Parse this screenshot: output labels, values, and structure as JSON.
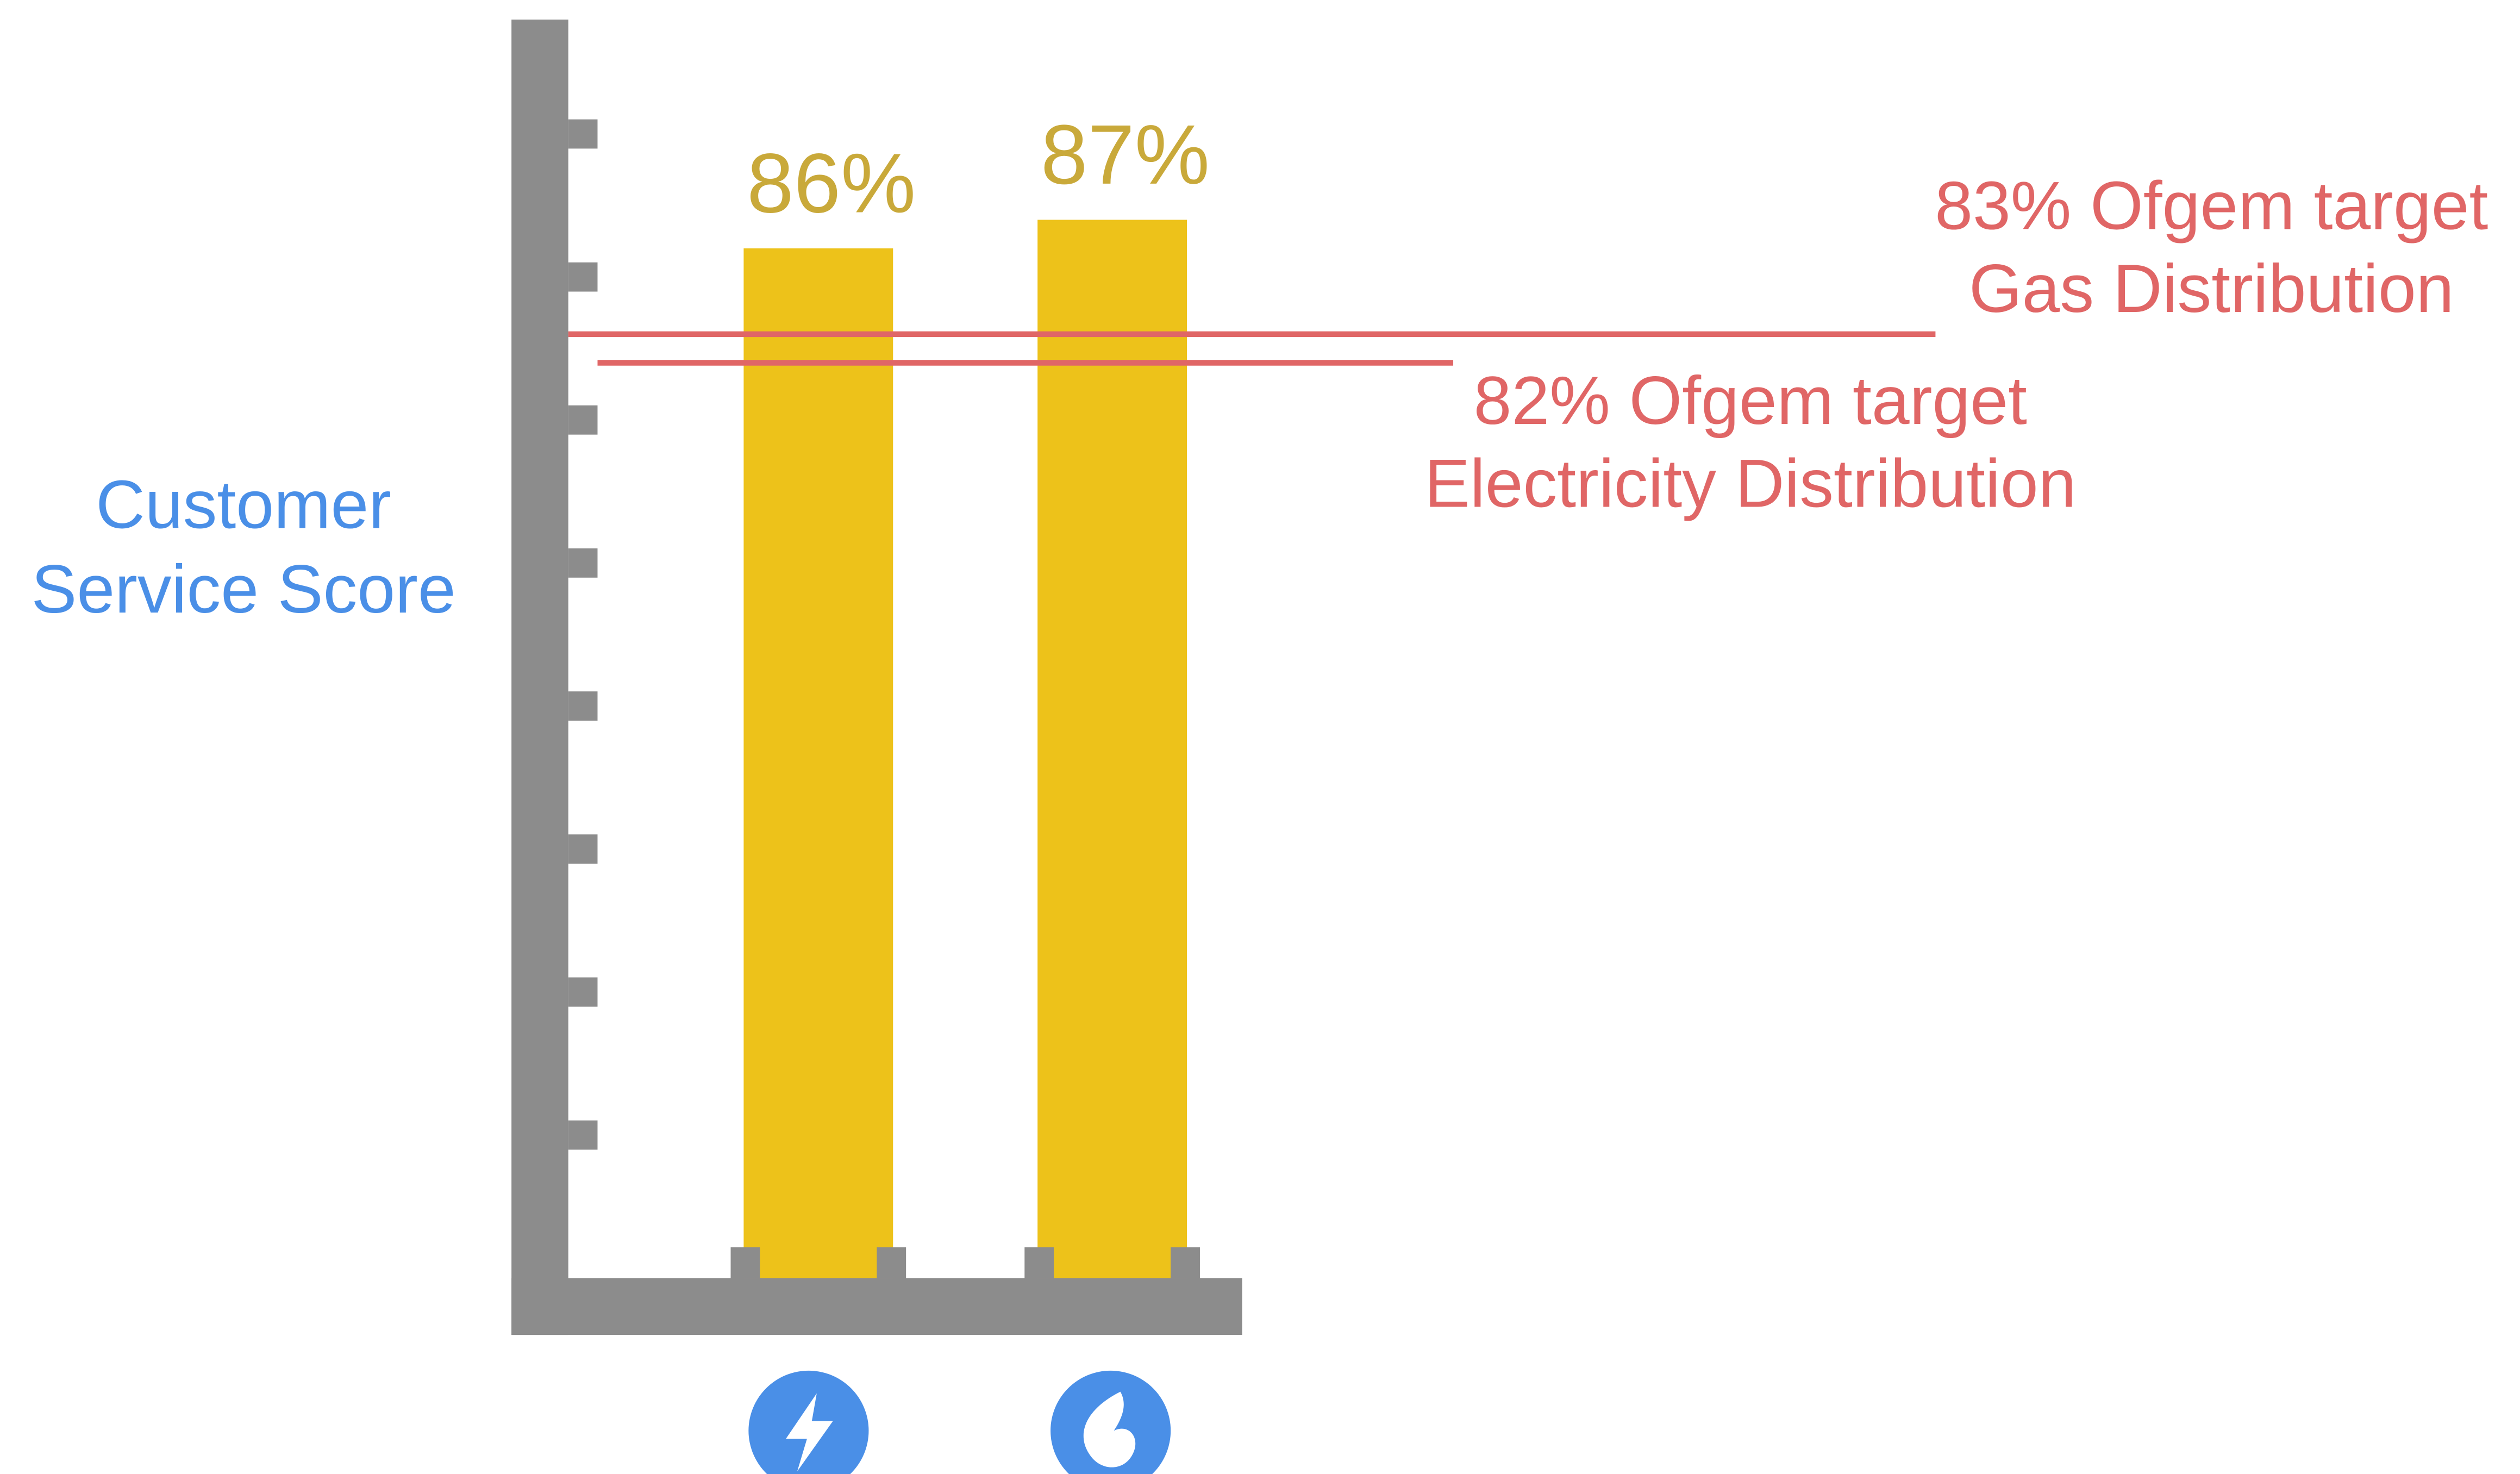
{
  "chart_data": {
    "type": "bar",
    "y_label": [
      "Customer",
      "Service Score"
    ],
    "categories": [
      null,
      null
    ],
    "values": [
      86,
      87
    ],
    "value_labels": [
      "86%",
      "87%"
    ],
    "color": "#edc21a",
    "ylim": [
      50,
      94
    ],
    "yticks": [
      55,
      60,
      65,
      70,
      75,
      80,
      85,
      90
    ],
    "reference_lines": [
      {
        "value": 83,
        "label": [
          "83% Ofgem target",
          "Gas Distribution"
        ],
        "color": "#e06666"
      },
      {
        "value": 82,
        "label": [
          "82% Ofgem target",
          "Electricity Distribution"
        ],
        "color": "#e06666"
      }
    ]
  }
}
